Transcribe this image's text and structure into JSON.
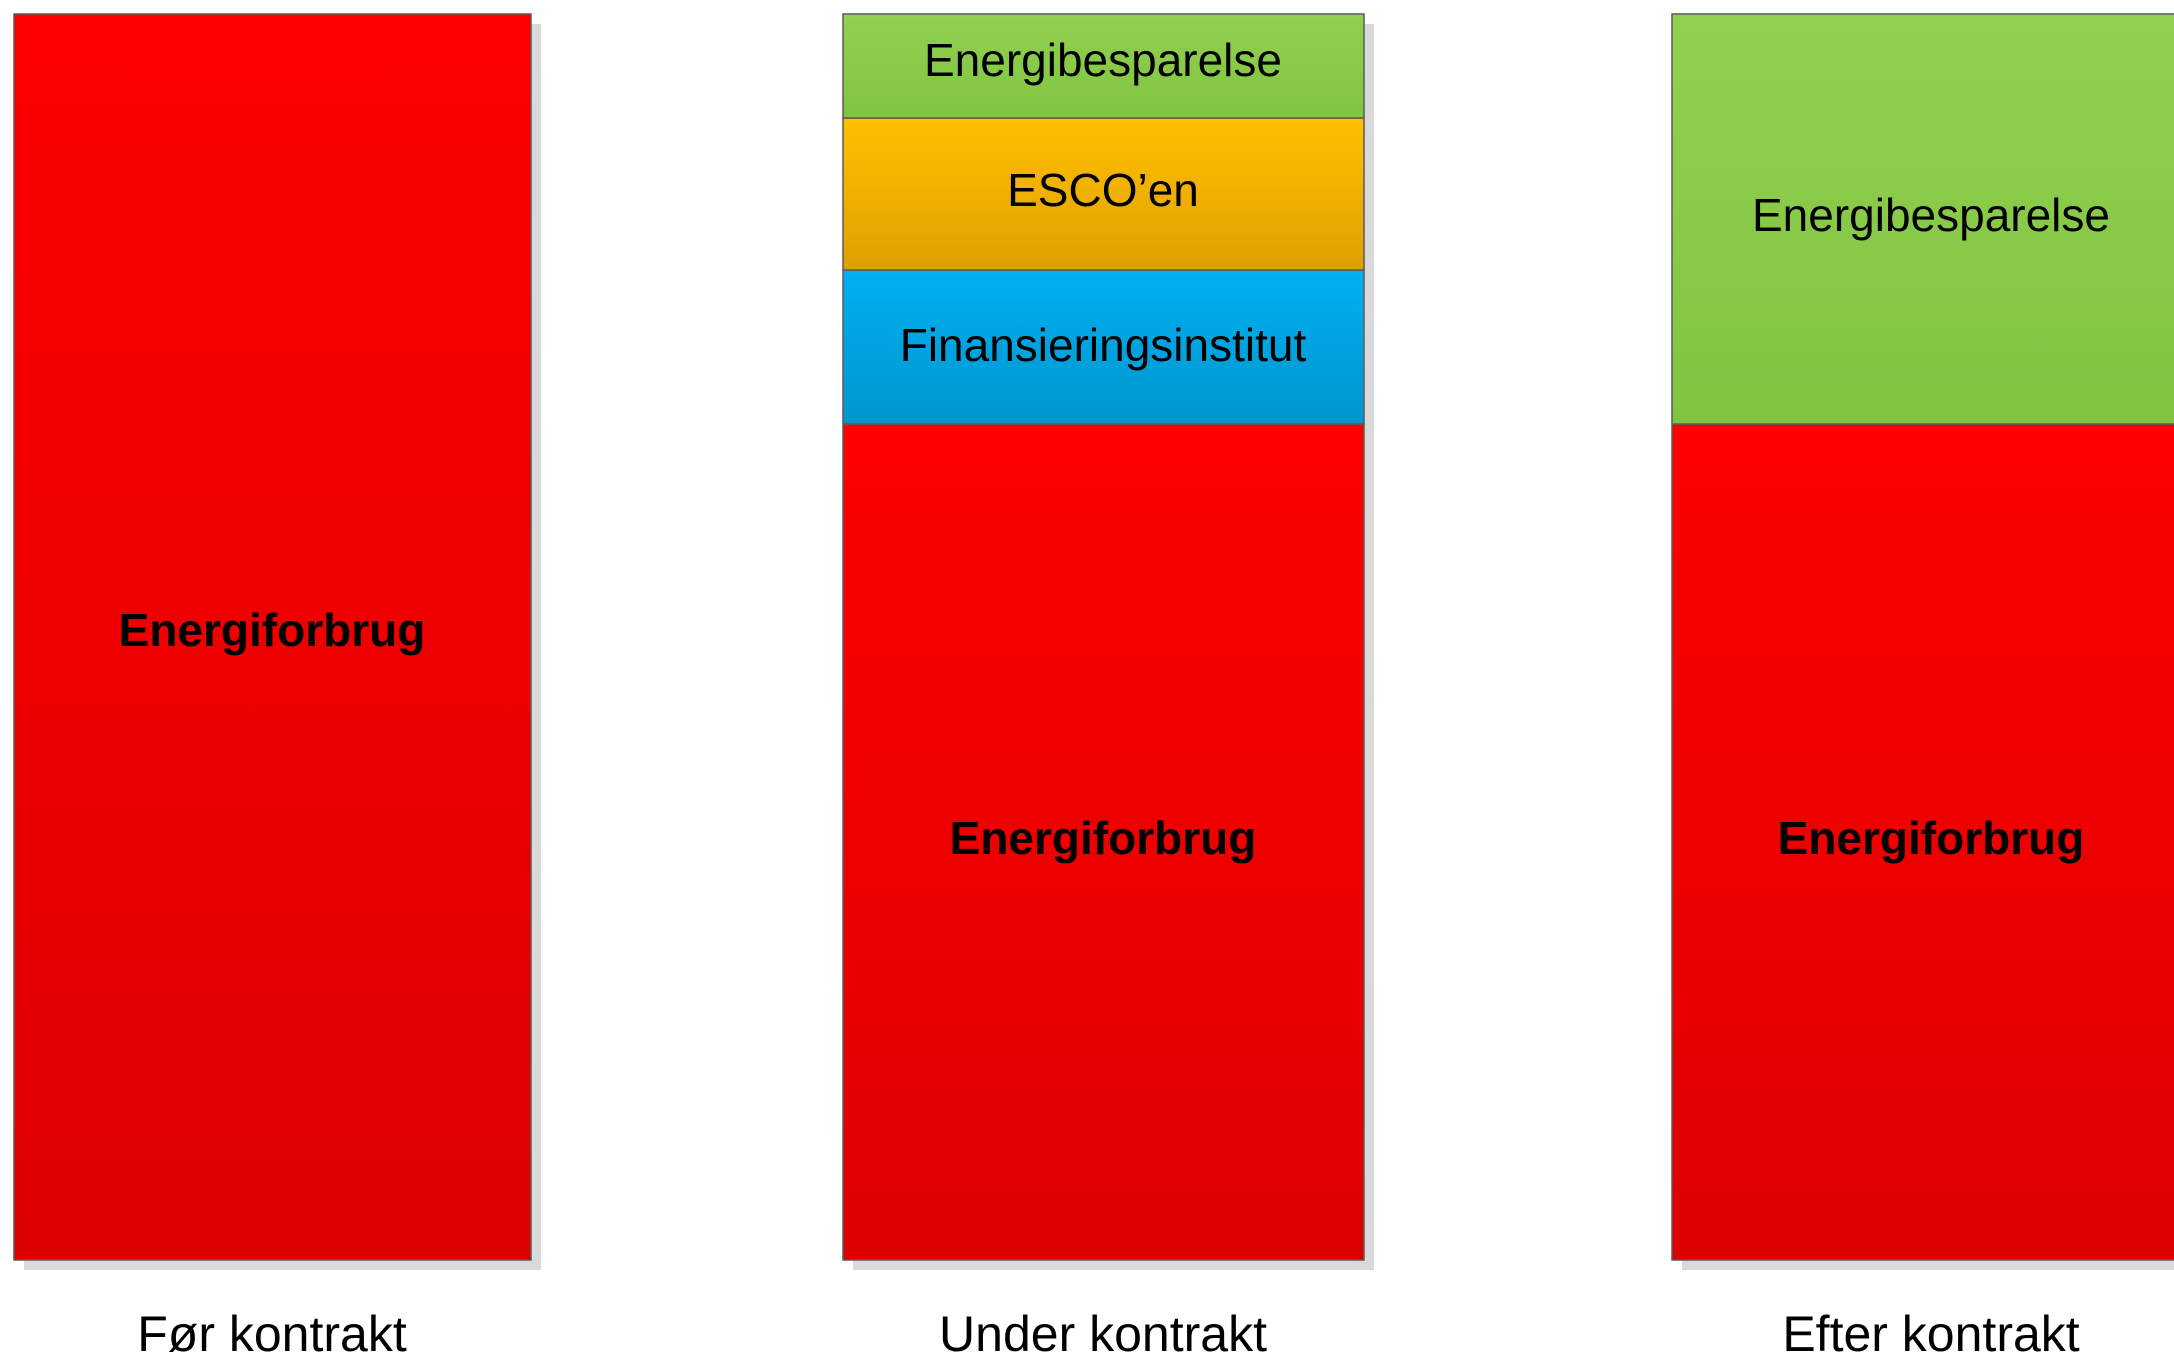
{
  "columns": [
    {
      "label": "Før kontrakt",
      "blocks": [
        {
          "label": "Energiforbrug"
        }
      ]
    },
    {
      "label": "Under kontrakt",
      "blocks": [
        {
          "label": "Energibesparelse"
        },
        {
          "label": "ESCO’en"
        },
        {
          "label": "Finansieringsinstitut"
        },
        {
          "label": "Energiforbrug"
        }
      ]
    },
    {
      "label": "Efter kontrakt",
      "blocks": [
        {
          "label": "Energibesparelse"
        },
        {
          "label": "Energiforbrug"
        }
      ]
    }
  ]
}
